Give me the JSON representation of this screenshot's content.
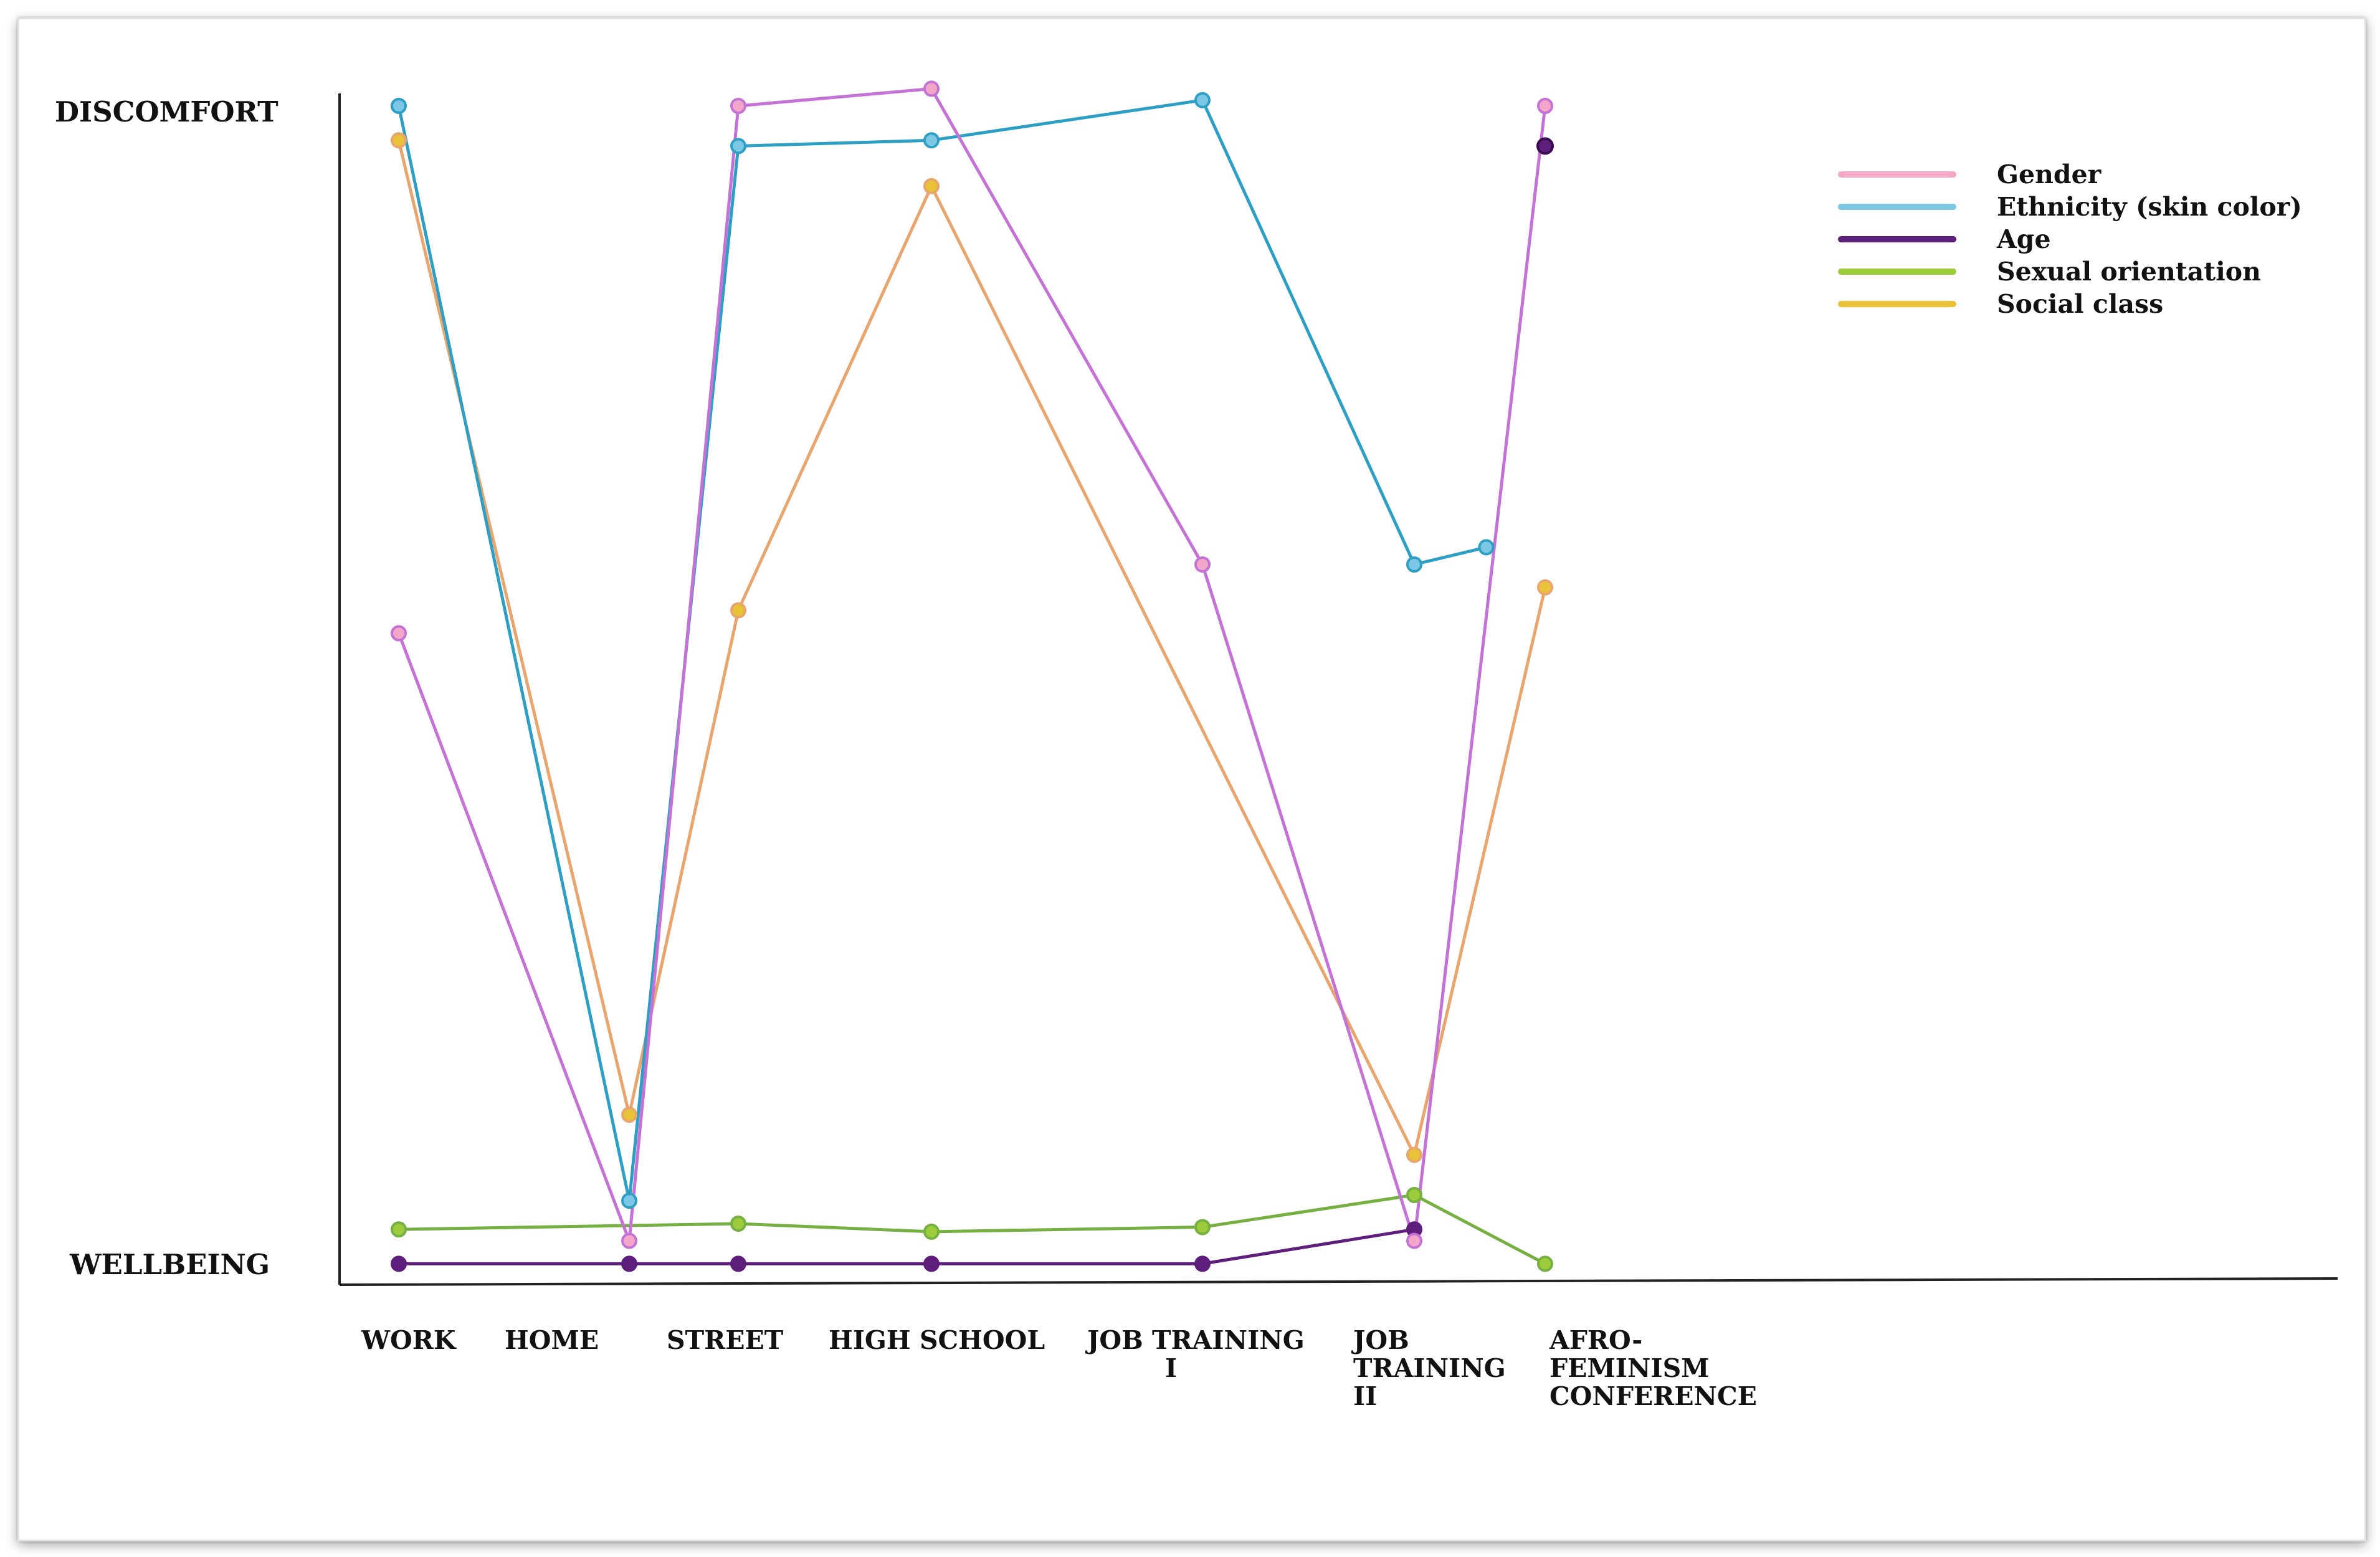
{
  "chart_data": {
    "type": "line",
    "ylabel_top": "DISCOMFORT",
    "ylabel_bottom": "WELLBEING",
    "ylim": [
      0,
      10
    ],
    "categories": [
      [
        "WORK"
      ],
      [
        "HOME"
      ],
      [
        "STREET"
      ],
      [
        "HIGH SCHOOL"
      ],
      [
        "JOB TRAINING",
        "I"
      ],
      [
        "JOB",
        "TRAINING",
        "II"
      ],
      [
        "AFRO-",
        "FEMINISM",
        "CONFERENCE"
      ]
    ],
    "legend_position": "top-right",
    "series": [
      {
        "name": "Gender",
        "color": "#f2a6c8",
        "line_color": "#c472d6",
        "points": [
          [
            0,
            5.4
          ],
          [
            1,
            0.1
          ],
          [
            2,
            10.0
          ],
          [
            3,
            10.15
          ],
          [
            4,
            6.0
          ],
          [
            5,
            0.1
          ],
          [
            6,
            10.0
          ]
        ]
      },
      {
        "name": "Ethnicity (skin color)",
        "color": "#7cc8e4",
        "line_color": "#2e9fc4",
        "points": [
          [
            0,
            10.0
          ],
          [
            1,
            0.45
          ],
          [
            2,
            9.65
          ],
          [
            3,
            9.7
          ],
          [
            4,
            10.05
          ],
          [
            5,
            6.0
          ],
          [
            5.55,
            6.15
          ]
        ]
      },
      {
        "name": "Age",
        "color": "#5e1e7c",
        "line_color": "#5e1e7c",
        "points": [
          [
            0,
            -0.1
          ],
          [
            1,
            -0.1
          ],
          [
            2,
            -0.1
          ],
          [
            3,
            -0.1
          ],
          [
            4,
            -0.1
          ],
          [
            5,
            0.2
          ]
        ]
      },
      {
        "name": "Sexual orientation",
        "color": "#9ccc3a",
        "line_color": "#76b043",
        "points": [
          [
            0,
            0.2
          ],
          [
            2,
            0.25
          ],
          [
            3,
            0.18
          ],
          [
            4,
            0.22
          ],
          [
            5,
            0.5
          ],
          [
            6,
            -0.1
          ]
        ]
      },
      {
        "name": "Social class",
        "color": "#e8c338",
        "line_color": "#e8a56e",
        "points": [
          [
            0,
            9.7
          ],
          [
            1,
            1.2
          ],
          [
            2,
            5.6
          ],
          [
            3,
            9.3
          ],
          [
            5,
            0.85
          ],
          [
            6,
            5.8
          ]
        ]
      }
    ],
    "extra_points": [
      {
        "series": "Age",
        "x": 6,
        "y": 9.65
      }
    ]
  }
}
